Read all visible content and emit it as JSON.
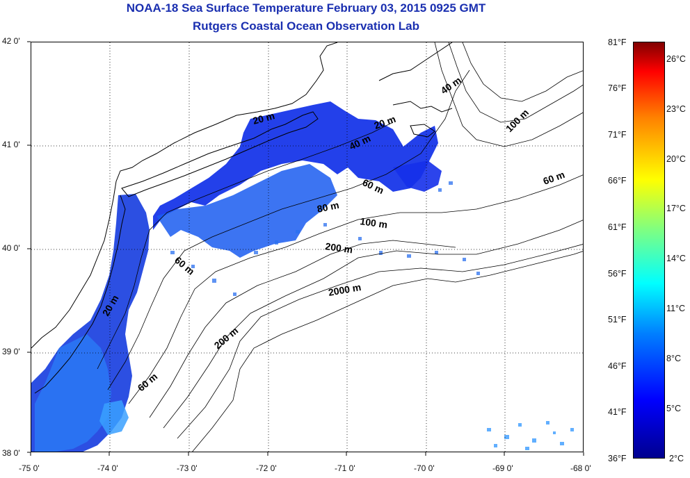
{
  "title": "NOAA-18 Sea Surface Temperature February 03, 2015 0925 GMT",
  "subtitle": "Rutgers Coastal Ocean Observation Lab",
  "map": {
    "lon_labels": [
      "-75 0'",
      "-74 0'",
      "-73 0'",
      "-72 0'",
      "-71 0'",
      "-70 0'",
      "-69 0'",
      "-68 0'"
    ],
    "lat_labels": [
      "42 0'",
      "41 0'",
      "40 0'",
      "39 0'",
      "38 0'"
    ],
    "lon_range": [
      -75,
      -68
    ],
    "lat_range": [
      38,
      42
    ],
    "depth_labels": [
      "20 m",
      "40 m",
      "100 m",
      "60 m",
      "20 m",
      "40 m",
      "60 m",
      "80 m",
      "100 m",
      "200 m",
      "60 m",
      "20 m",
      "2000 m",
      "200 m",
      "60 m"
    ],
    "colors": {
      "land_outline": "#000000",
      "grid": "#000000",
      "cold": "#0000cc",
      "warm": "#1f8cff"
    }
  },
  "colorbar": {
    "fahrenheit": [
      "81°F",
      "76°F",
      "71°F",
      "66°F",
      "61°F",
      "56°F",
      "51°F",
      "46°F",
      "41°F",
      "36°F"
    ],
    "celsius": [
      "26°C",
      "23°C",
      "20°C",
      "17°C",
      "14°C",
      "11°C",
      "8°C",
      "5°C",
      "2°C"
    ],
    "range_f": [
      36,
      81
    ],
    "range_c": [
      2,
      27
    ]
  }
}
